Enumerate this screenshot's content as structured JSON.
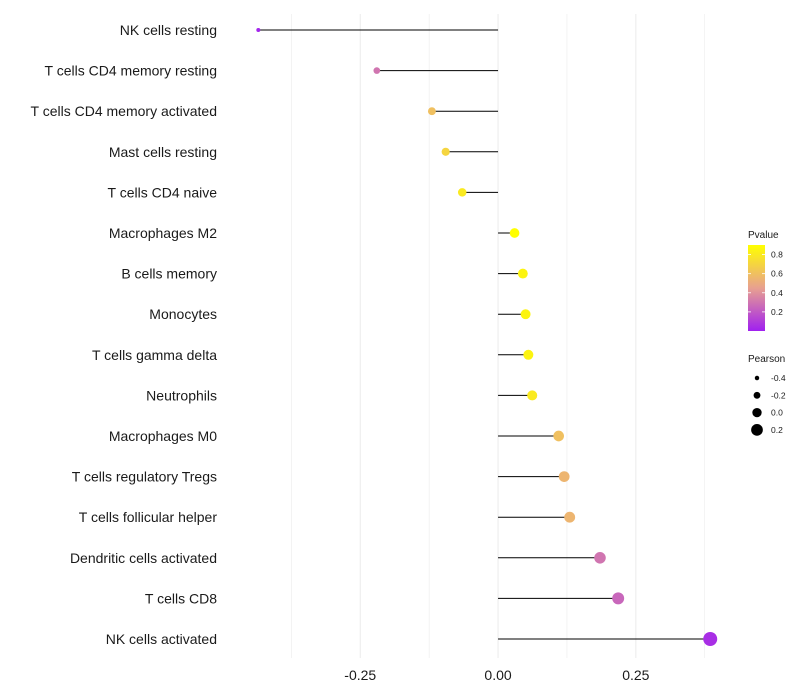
{
  "chart_data": {
    "type": "lollipop",
    "title": "",
    "xlabel": "",
    "ylabel": "",
    "xlim": [
      -0.49,
      0.41
    ],
    "xticks": [
      -0.25,
      0.0,
      0.25
    ],
    "xtick_labels": [
      "-0.25",
      "0.00",
      "0.25"
    ],
    "grid": true,
    "categories": [
      "NK cells resting",
      "T cells CD4 memory resting",
      "T cells CD4 memory activated",
      "Mast cells resting",
      "T cells CD4 naive",
      "Macrophages M2",
      "B cells memory",
      "Monocytes",
      "T cells gamma delta",
      "Neutrophils",
      "Macrophages M0",
      "T cells regulatory  Tregs",
      "T cells follicular helper",
      "Dendritic cells activated",
      "T cells CD8",
      "NK cells activated"
    ],
    "pearson": [
      -0.435,
      -0.22,
      -0.12,
      -0.095,
      -0.065,
      0.03,
      0.045,
      0.05,
      0.055,
      0.062,
      0.11,
      0.12,
      0.13,
      0.185,
      0.218,
      0.385
    ],
    "pvalue": [
      0.02,
      0.3,
      0.6,
      0.7,
      0.8,
      0.9,
      0.85,
      0.85,
      0.85,
      0.8,
      0.6,
      0.55,
      0.55,
      0.3,
      0.25,
      0.05
    ],
    "color_legend": {
      "title": "Pvalue",
      "ticks": [
        0.8,
        0.6,
        0.4,
        0.2
      ],
      "tick_labels": [
        "0.8",
        "0.6",
        "0.4",
        "0.2"
      ],
      "low_color": "#a020f0",
      "mid_color": "#e8a090",
      "high_color": "#ffff00",
      "range": [
        0.0,
        0.9
      ]
    },
    "size_legend": {
      "title": "Pearson",
      "values": [
        -0.4,
        -0.2,
        0.0,
        0.2
      ],
      "labels": [
        "-0.4",
        "-0.2",
        "0.0",
        "0.2"
      ],
      "range": [
        -0.435,
        0.385
      ]
    },
    "colors": {
      "stem": "#000000",
      "grid": "#ebebeb",
      "text": "#1a1a1a"
    }
  }
}
